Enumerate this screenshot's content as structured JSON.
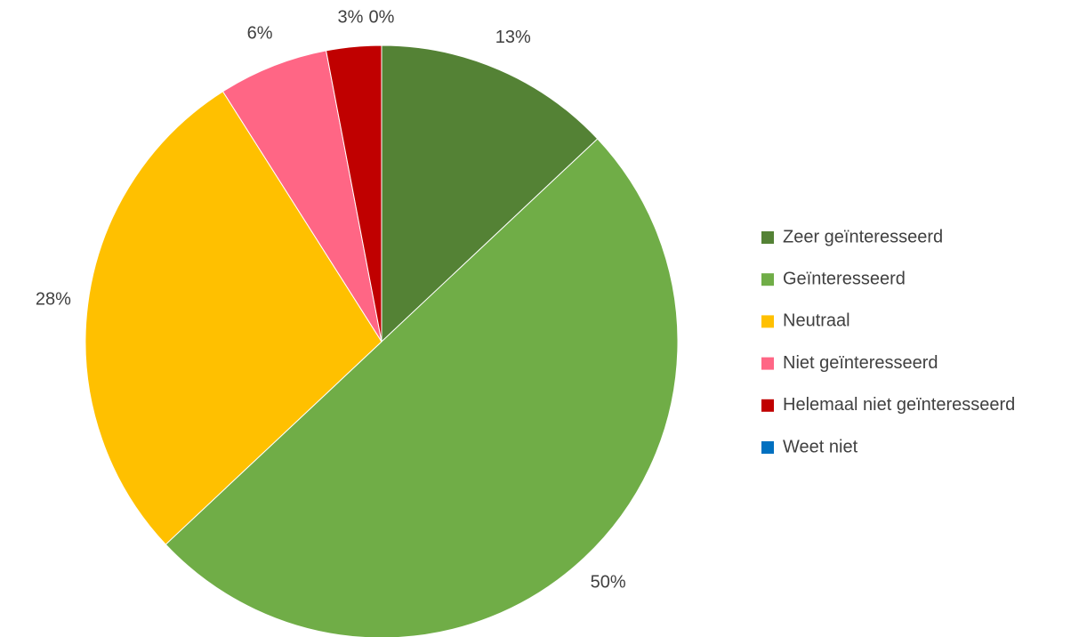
{
  "chart_data": {
    "type": "pie",
    "categories": [
      "Zeer geïnteresseerd",
      "Geïnteresseerd",
      "Neutraal",
      "Niet geïnteresseerd",
      "Helemaal niet geïnteresseerd",
      "Weet niet"
    ],
    "values": [
      13,
      50,
      28,
      6,
      3,
      0
    ],
    "value_labels": [
      "13%",
      "50%",
      "28%",
      "6%",
      "3%",
      "0%"
    ],
    "colors": [
      "#548235",
      "#70ad47",
      "#ffc000",
      "#ff6685",
      "#c00000",
      "#0070c0"
    ],
    "legend": "right"
  }
}
